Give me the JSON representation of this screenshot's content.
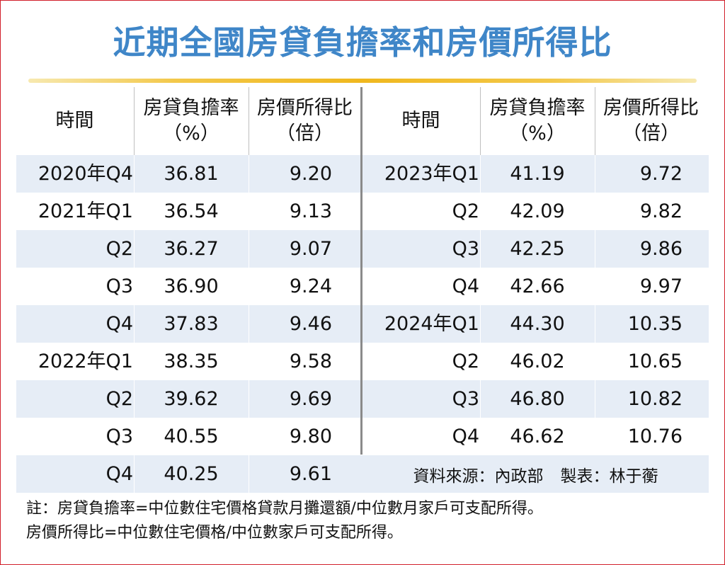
{
  "title": "近期全國房貸負擔率和房價所得比",
  "headers": {
    "time": "時間",
    "burden_line1": "房貸負擔率",
    "burden_line2": "（%）",
    "ratio_line1": "房價所得比",
    "ratio_line2": "（倍）"
  },
  "left_rows": [
    {
      "period": "2020年Q4",
      "burden": "36.81",
      "ratio": "9.20"
    },
    {
      "period": "2021年Q1",
      "burden": "36.54",
      "ratio": "9.13"
    },
    {
      "period": "Q2",
      "burden": "36.27",
      "ratio": "9.07"
    },
    {
      "period": "Q3",
      "burden": "36.90",
      "ratio": "9.24"
    },
    {
      "period": "Q4",
      "burden": "37.83",
      "ratio": "9.46"
    },
    {
      "period": "2022年Q1",
      "burden": "38.35",
      "ratio": "9.58"
    },
    {
      "period": "Q2",
      "burden": "39.62",
      "ratio": "9.69"
    },
    {
      "period": "Q3",
      "burden": "40.55",
      "ratio": "9.80"
    },
    {
      "period": "Q4",
      "burden": "40.25",
      "ratio": "9.61"
    }
  ],
  "right_rows": [
    {
      "period": "2023年Q1",
      "burden": "41.19",
      "ratio": "9.72"
    },
    {
      "period": "Q2",
      "burden": "42.09",
      "ratio": "9.82"
    },
    {
      "period": "Q3",
      "burden": "42.25",
      "ratio": "9.86"
    },
    {
      "period": "Q4",
      "burden": "42.66",
      "ratio": "9.97"
    },
    {
      "period": "2024年Q1",
      "burden": "44.30",
      "ratio": "10.35"
    },
    {
      "period": "Q2",
      "burden": "46.02",
      "ratio": "10.65"
    },
    {
      "period": "Q3",
      "burden": "46.80",
      "ratio": "10.82"
    },
    {
      "period": "Q4",
      "burden": "46.62",
      "ratio": "10.76"
    }
  ],
  "source": {
    "data_source": "資料來源：內政部",
    "made_by": "製表：林于蘅"
  },
  "notes": [
    "註：房貸負擔率=中位數住宅價格貸款月攤還額/中位數月家戶可支配所得。",
    "房價所得比=中位數住宅價格/中位數家戶可支配所得。"
  ],
  "colors": {
    "title": "#3f86c8",
    "row_shade": "#e6edf6",
    "rule_gold": "#f0b81e",
    "frame_red": "#d21f2a"
  }
}
